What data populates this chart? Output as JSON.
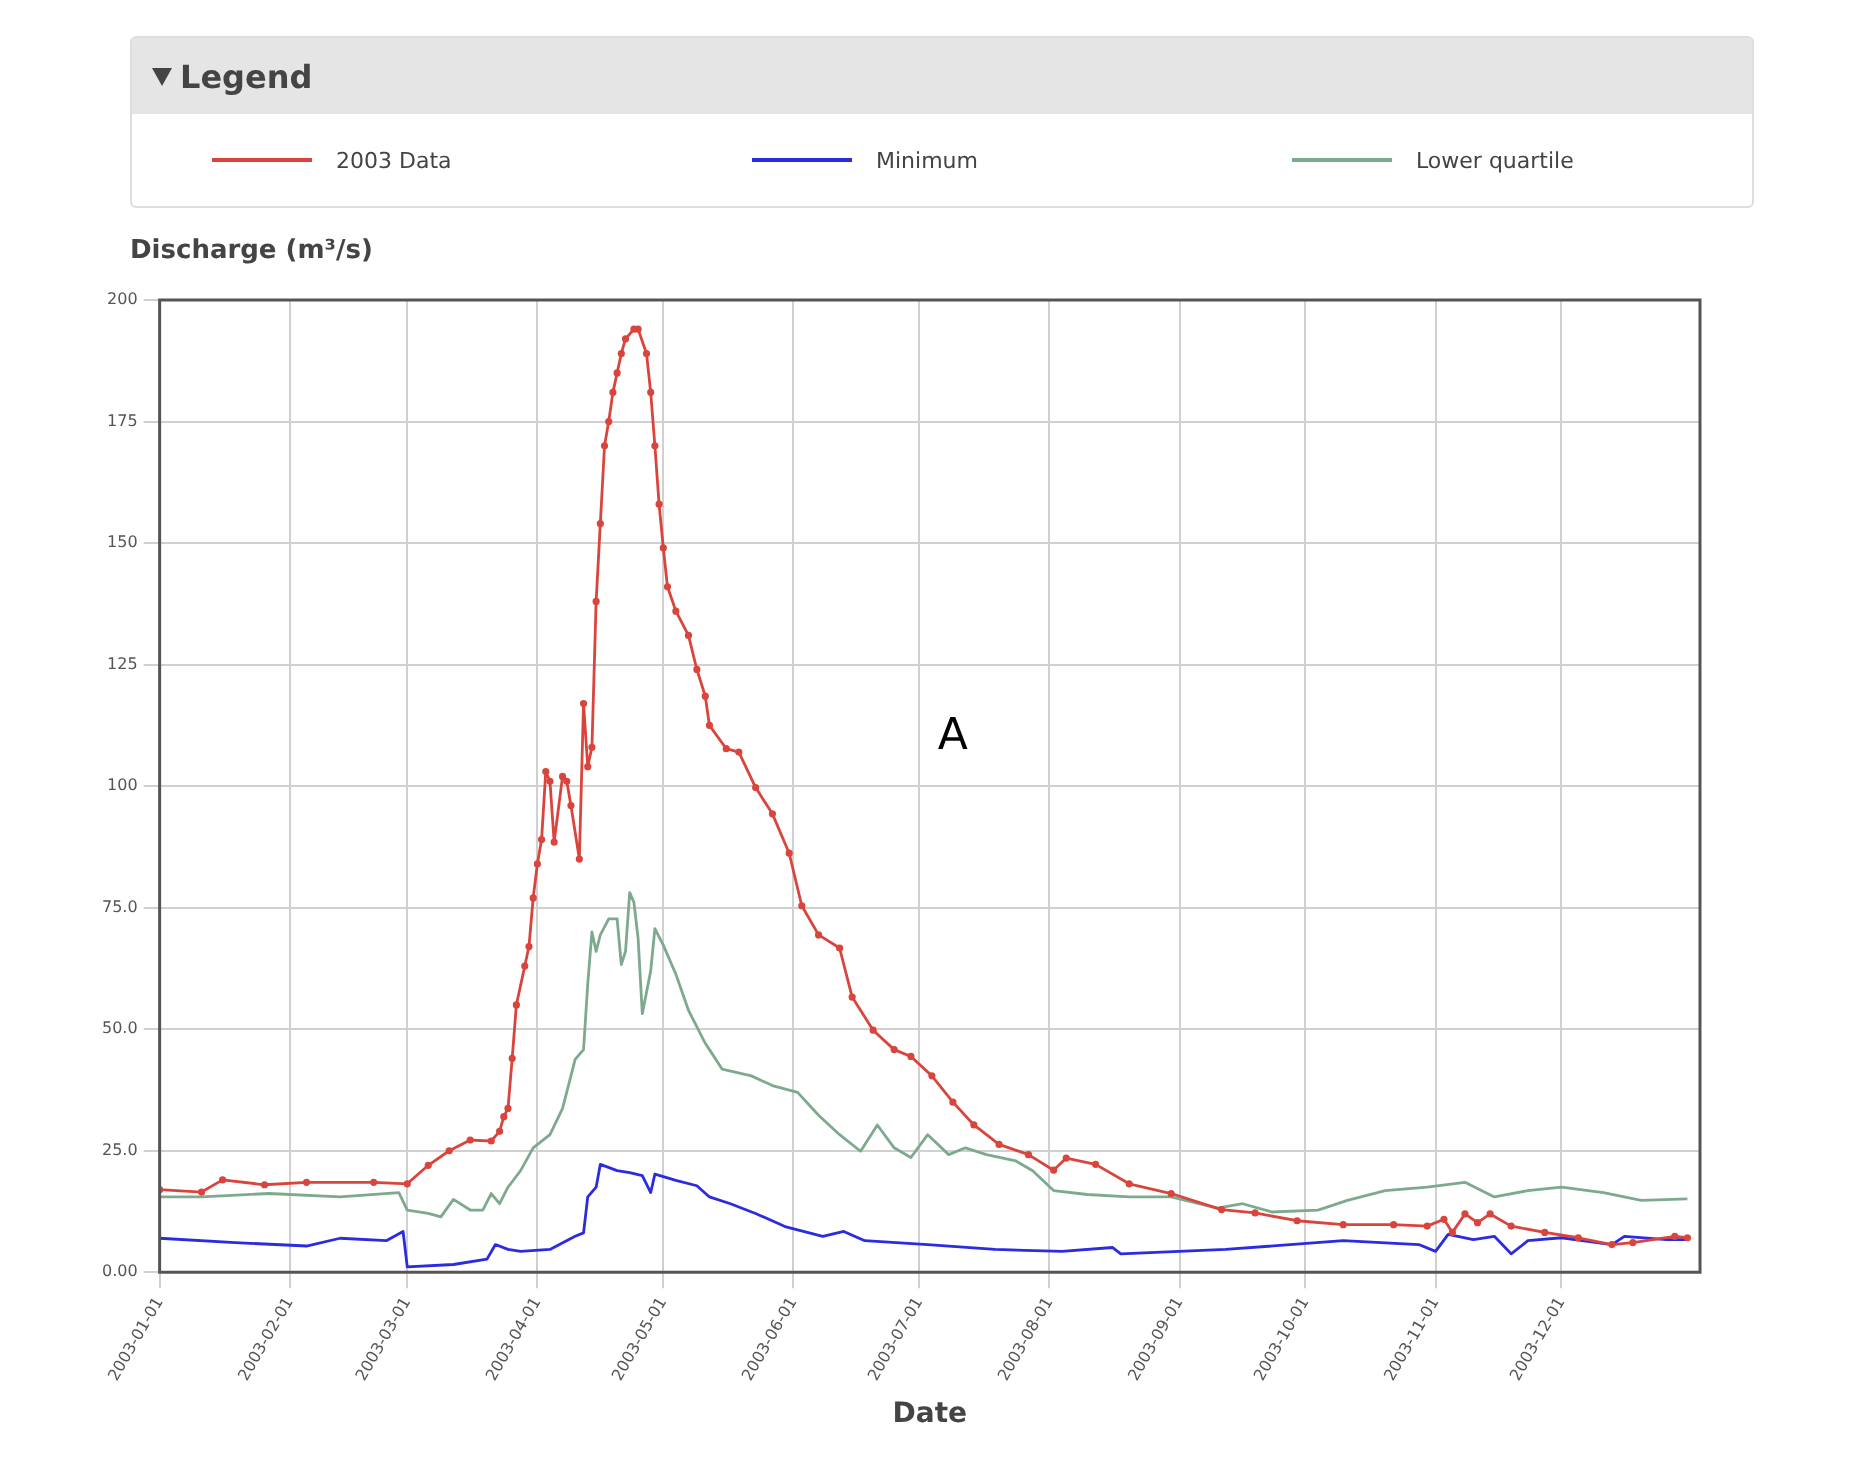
{
  "chart_data": {
    "type": "line",
    "legend_title": "Legend",
    "legend": "top",
    "ylabel": "Discharge (m³/s)",
    "xlabel": "Date",
    "annotations": [
      "A"
    ],
    "grid": true,
    "xlim": [
      "2003-01-01",
      "2004-01-03"
    ],
    "xticks": [
      "2003-01-01",
      "2003-02-01",
      "2003-03-01",
      "2003-04-01",
      "2003-05-01",
      "2003-06-01",
      "2003-07-01",
      "2003-08-01",
      "2003-09-01",
      "2003-10-01",
      "2003-11-01",
      "2003-12-01"
    ],
    "ylim": [
      0,
      200
    ],
    "yticks": [
      {
        "value": 0,
        "label": "0.00"
      },
      {
        "value": 25,
        "label": "25.0"
      },
      {
        "value": 50,
        "label": "50.0"
      },
      {
        "value": 75,
        "label": "75.0"
      },
      100,
      125,
      150,
      175,
      200
    ],
    "series": [
      {
        "name": "2003 Data",
        "color": "#d9453c",
        "marker": "circle",
        "x": [
          "2003-01-01",
          "2003-01-11",
          "2003-01-16",
          "2003-01-26",
          "2003-02-05",
          "2003-02-21",
          "2003-03-01",
          "2003-03-06",
          "2003-03-11",
          "2003-03-16",
          "2003-03-21",
          "2003-03-23",
          "2003-03-24",
          "2003-03-25",
          "2003-03-26",
          "2003-03-27",
          "2003-03-29",
          "2003-03-30",
          "2003-03-31",
          "2003-04-01",
          "2003-04-02",
          "2003-04-03",
          "2003-04-04",
          "2003-04-05",
          "2003-04-07",
          "2003-04-08",
          "2003-04-09",
          "2003-04-11",
          "2003-04-12",
          "2003-04-13",
          "2003-04-14",
          "2003-04-15",
          "2003-04-16",
          "2003-04-17",
          "2003-04-18",
          "2003-04-19",
          "2003-04-20",
          "2003-04-21",
          "2003-04-22",
          "2003-04-24",
          "2003-04-25",
          "2003-04-27",
          "2003-04-28",
          "2003-04-29",
          "2003-04-30",
          "2003-05-01",
          "2003-05-02",
          "2003-05-04",
          "2003-05-07",
          "2003-05-09",
          "2003-05-11",
          "2003-05-12",
          "2003-05-16",
          "2003-05-19",
          "2003-05-23",
          "2003-05-27",
          "2003-05-31",
          "2003-06-03",
          "2003-06-07",
          "2003-06-12",
          "2003-06-15",
          "2003-06-20",
          "2003-06-25",
          "2003-06-29",
          "2003-07-04",
          "2003-07-09",
          "2003-07-14",
          "2003-07-20",
          "2003-07-27",
          "2003-08-02",
          "2003-08-05",
          "2003-08-12",
          "2003-08-20",
          "2003-08-30",
          "2003-09-11",
          "2003-09-19",
          "2003-09-29",
          "2003-10-10",
          "2003-10-22",
          "2003-10-30",
          "2003-11-03",
          "2003-11-05",
          "2003-11-08",
          "2003-11-11",
          "2003-11-14",
          "2003-11-19",
          "2003-11-27",
          "2003-12-05",
          "2003-12-13",
          "2003-12-18",
          "2003-12-28",
          "2003-12-31"
        ],
        "values": [
          17,
          16.5,
          19,
          18,
          18.5,
          18.5,
          18.2,
          22,
          25,
          27.2,
          27,
          29,
          32,
          33.7,
          44,
          55,
          63,
          67,
          77,
          84,
          89,
          103,
          101,
          88.5,
          102,
          101,
          96,
          85,
          117,
          104,
          108,
          138,
          154,
          170,
          175,
          181,
          185,
          189,
          192,
          194,
          194,
          189,
          181,
          170,
          158,
          149,
          141,
          136,
          131,
          124,
          118.5,
          112.5,
          107.7,
          107,
          99.7,
          94.3,
          86.2,
          75.4,
          69.4,
          66.7,
          56.6,
          49.8,
          45.8,
          44.4,
          40.4,
          35,
          30.3,
          26.3,
          24.2,
          21,
          23.5,
          22.2,
          18.2,
          16.2,
          12.9,
          12.2,
          10.6,
          9.8,
          9.8,
          9.5,
          10.9,
          8.2,
          12,
          10.2,
          12,
          9.5,
          8.2,
          7.1,
          5.7,
          6.1,
          7.4,
          7.1
        ]
      },
      {
        "name": "Minimum",
        "color": "#2b2bdf",
        "marker": "none",
        "x": [
          "2003-01-01",
          "2003-01-19",
          "2003-02-05",
          "2003-02-13",
          "2003-02-24",
          "2003-02-28",
          "2003-03-01",
          "2003-03-12",
          "2003-03-20",
          "2003-03-22",
          "2003-03-25",
          "2003-03-28",
          "2003-04-04",
          "2003-04-10",
          "2003-04-12",
          "2003-04-13",
          "2003-04-15",
          "2003-04-16",
          "2003-04-20",
          "2003-04-23",
          "2003-04-26",
          "2003-04-28",
          "2003-04-29",
          "2003-05-04",
          "2003-05-09",
          "2003-05-12",
          "2003-05-17",
          "2003-05-23",
          "2003-05-30",
          "2003-06-08",
          "2003-06-13",
          "2003-06-18",
          "2003-07-03",
          "2003-07-19",
          "2003-08-04",
          "2003-08-16",
          "2003-08-18",
          "2003-09-12",
          "2003-10-10",
          "2003-10-28",
          "2003-11-01",
          "2003-11-04",
          "2003-11-10",
          "2003-11-15",
          "2003-11-19",
          "2003-11-23",
          "2003-12-01",
          "2003-12-13",
          "2003-12-16",
          "2003-12-26",
          "2003-12-31"
        ],
        "values": [
          7,
          6.1,
          5.4,
          7,
          6.5,
          8.4,
          1.1,
          1.6,
          2.7,
          5.7,
          4.7,
          4.3,
          4.7,
          7.4,
          8.1,
          15.5,
          17.5,
          22.2,
          20.9,
          20.5,
          19.9,
          16.4,
          20.2,
          18.9,
          17.8,
          15.5,
          14.1,
          12.1,
          9.4,
          7.4,
          8.4,
          6.5,
          5.7,
          4.7,
          4.3,
          5.1,
          3.8,
          4.7,
          6.5,
          5.7,
          4.3,
          7.8,
          6.7,
          7.4,
          3.8,
          6.5,
          7.1,
          5.7,
          7.4,
          6.7,
          6.7
        ]
      },
      {
        "name": "Lower quartile",
        "color": "#7daa8e",
        "marker": "none",
        "x": [
          "2003-01-01",
          "2003-01-11",
          "2003-01-27",
          "2003-02-13",
          "2003-02-27",
          "2003-03-01",
          "2003-03-06",
          "2003-03-09",
          "2003-03-12",
          "2003-03-16",
          "2003-03-19",
          "2003-03-21",
          "2003-03-23",
          "2003-03-25",
          "2003-03-28",
          "2003-03-31",
          "2003-04-04",
          "2003-04-07",
          "2003-04-10",
          "2003-04-12",
          "2003-04-13",
          "2003-04-14",
          "2003-04-15",
          "2003-04-16",
          "2003-04-18",
          "2003-04-20",
          "2003-04-21",
          "2003-04-22",
          "2003-04-23",
          "2003-04-24",
          "2003-04-25",
          "2003-04-26",
          "2003-04-28",
          "2003-04-29",
          "2003-05-01",
          "2003-05-04",
          "2003-05-07",
          "2003-05-11",
          "2003-05-12",
          "2003-05-15",
          "2003-05-22",
          "2003-05-27",
          "2003-06-02",
          "2003-06-07",
          "2003-06-12",
          "2003-06-17",
          "2003-06-21",
          "2003-06-25",
          "2003-06-29",
          "2003-07-03",
          "2003-07-08",
          "2003-07-12",
          "2003-07-17",
          "2003-07-24",
          "2003-07-28",
          "2003-08-02",
          "2003-08-10",
          "2003-08-20",
          "2003-08-30",
          "2003-09-10",
          "2003-09-16",
          "2003-09-23",
          "2003-10-04",
          "2003-10-11",
          "2003-10-20",
          "2003-10-30",
          "2003-11-08",
          "2003-11-15",
          "2003-11-23",
          "2003-12-01",
          "2003-12-11",
          "2003-12-20",
          "2003-12-31"
        ],
        "values": [
          15.5,
          15.5,
          16.2,
          15.5,
          16.4,
          12.8,
          12.1,
          11.4,
          15,
          12.8,
          12.8,
          16.2,
          14.1,
          17.5,
          20.9,
          25.6,
          28.3,
          33.7,
          43.8,
          45.8,
          59.3,
          70,
          66,
          69.4,
          72.7,
          72.7,
          63.3,
          66,
          78.1,
          76.1,
          68.7,
          53.2,
          62,
          70.7,
          67.3,
          61.3,
          53.9,
          47.1,
          45.8,
          41.8,
          40.4,
          38.4,
          37,
          32.3,
          28.3,
          24.9,
          30.3,
          25.6,
          23.6,
          28.3,
          24.2,
          25.6,
          24.2,
          22.9,
          20.9,
          16.8,
          16,
          15.5,
          15.5,
          13.2,
          14.1,
          12.4,
          12.8,
          14.8,
          16.8,
          17.5,
          18.5,
          15.5,
          16.8,
          17.5,
          16.4,
          14.8,
          15.1
        ]
      }
    ]
  }
}
